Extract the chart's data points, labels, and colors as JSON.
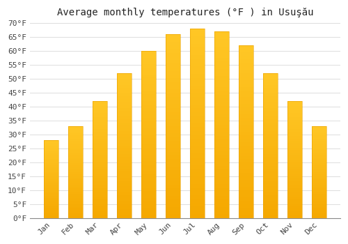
{
  "title": "Average monthly temperatures (°F ) in Usuşău",
  "months": [
    "Jan",
    "Feb",
    "Mar",
    "Apr",
    "May",
    "Jun",
    "Jul",
    "Aug",
    "Sep",
    "Oct",
    "Nov",
    "Dec"
  ],
  "values": [
    28,
    33,
    42,
    52,
    60,
    66,
    68,
    67,
    62,
    52,
    42,
    33
  ],
  "bar_color_top": "#FFC726",
  "bar_color_bottom": "#F5A800",
  "bar_edge_color": "#E8A000",
  "background_color": "#FFFFFF",
  "plot_bg_color": "#FFFFFF",
  "grid_color": "#DDDDDD",
  "ylim": [
    0,
    70
  ],
  "ytick_step": 5,
  "title_fontsize": 10,
  "tick_fontsize": 8,
  "bar_width": 0.6
}
